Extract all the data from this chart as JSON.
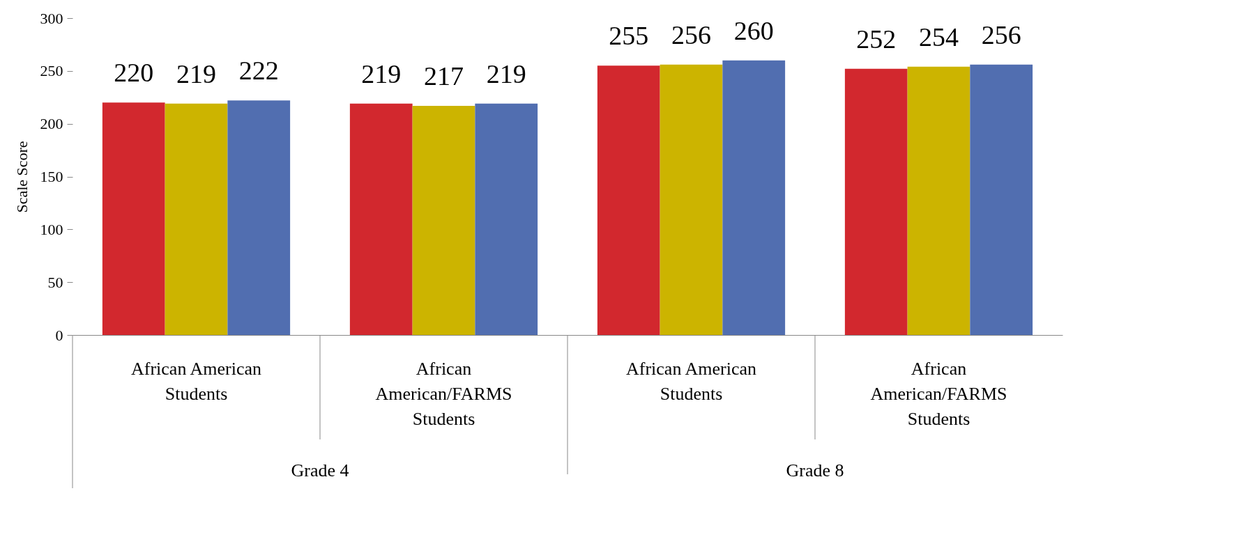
{
  "chart_data": {
    "type": "bar",
    "ylabel": "Scale Score",
    "categories": [
      "African American Students",
      "African American/FARMS Students",
      "African American Students",
      "African American/FARMS Students"
    ],
    "series": [
      {
        "color": "#d2282e",
        "values": [
          220,
          219,
          255,
          252
        ]
      },
      {
        "color": "#ccb400",
        "values": [
          219,
          217,
          256,
          254
        ]
      },
      {
        "color": "#516eb0",
        "values": [
          222,
          219,
          260,
          256
        ]
      }
    ],
    "ylim": [
      0,
      300
    ],
    "yticks": [
      0,
      50,
      100,
      150,
      200,
      250,
      300
    ],
    "grid": false,
    "data_labels": true,
    "annotations": [
      "Grade 4",
      "Grade 8"
    ]
  }
}
